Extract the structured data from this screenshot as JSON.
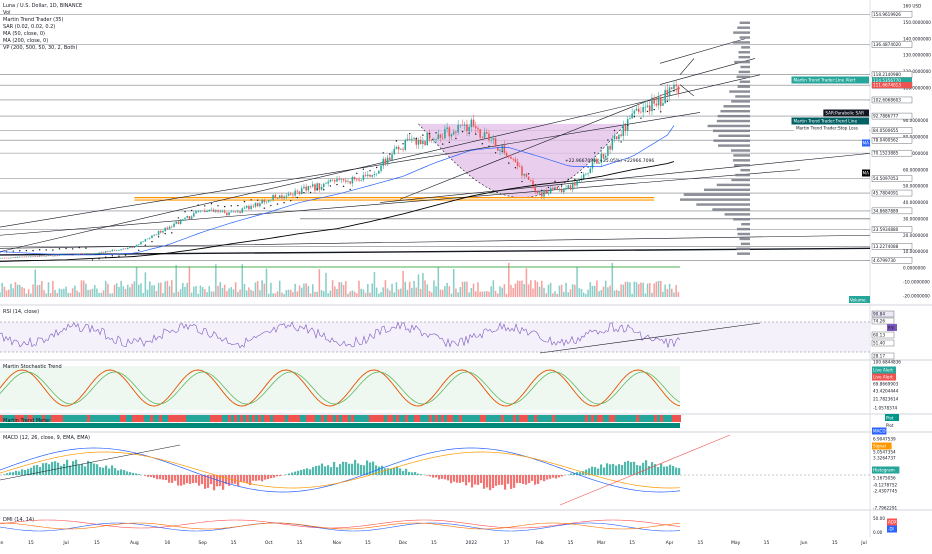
{
  "header": {
    "title": "Luna / U.S. Dollar, 1D, BINANCE",
    "indicators": [
      "Vol",
      "Martin Trend Trader (35)",
      "SAR (0.02, 0.02, 0.2)",
      "MA (50, close, 0)",
      "MA (200, close, 0)",
      "VP (200, 500, 50, 30, 2, Both)"
    ]
  },
  "panes": {
    "rsi": "RSI (14, close)",
    "stoch": "Martin Stochastic Trend",
    "meter": "Martin Trend Meter",
    "macd": "MACD (12, 26, close, 9, EMA, EMA)",
    "dmi": "DMI (14, 14)"
  },
  "colors": {
    "bull": "#26a69a",
    "bear": "#ef5350",
    "cup_fill": "#e1bee7",
    "ma50": "#2962ff",
    "ma200": "#000000",
    "sar": "#131722",
    "profile": "#787b86",
    "support": "#ff9800",
    "rsi": "#7e57c2",
    "stoch_k": "#e65100",
    "stoch_d": "#4caf50",
    "macd": "#2962ff",
    "signal": "#ff9800",
    "adx": "#ff5252",
    "diplus": "#2962ff",
    "diminus": "#ff6d00"
  },
  "price_axis": {
    "ticks": [
      "160 USD",
      "150.0000000",
      "140.0000000",
      "130.0000000",
      "120.0000000",
      "110.0000000",
      "90.0000000",
      "80.0000000",
      "70.0000000",
      "60.0000000",
      "50.0000000",
      "40.0000000",
      "30.0000000",
      "20.0000000",
      "10.0000000",
      "0.0000000",
      "-10.0000000",
      "-20.0000000"
    ],
    "labels": [
      {
        "text": "154.9619926",
        "color": "#131722"
      },
      {
        "text": "136.4874020",
        "color": "#131722"
      },
      {
        "text": "118.2140980",
        "color": "#131722"
      },
      {
        "text": "114.5356770",
        "color": "#26a69a"
      },
      {
        "text": "111.6674013",
        "color": "#ef5350"
      },
      {
        "text": "102.6068603",
        "color": "#131722"
      },
      {
        "text": "92.7886777",
        "color": "#131722"
      },
      {
        "text": "84.0500655",
        "color": "#131722"
      },
      {
        "text": "78.0400562",
        "color": "#131722"
      },
      {
        "text": "70.1523885",
        "color": "#131722"
      },
      {
        "text": "54.5097053",
        "color": "#131722"
      },
      {
        "text": "45.7804091",
        "color": "#131722"
      },
      {
        "text": "34.8687889",
        "color": "#131722"
      },
      {
        "text": "23.5934880",
        "color": "#131722"
      },
      {
        "text": "13.2274088",
        "color": "#131722"
      },
      {
        "text": "4.6799730",
        "color": "#131722"
      }
    ],
    "tags": [
      {
        "text": "Martin Trend Trader:Line Alert",
        "color": "#26a69a"
      },
      {
        "text": "SAR:Parabolic SAR",
        "color": "#131722"
      },
      {
        "text": "Martin Trend Trader:Trend Line",
        "color": "#006064"
      },
      {
        "text": "Martin Trend Trader:Stop Loss",
        "color": "#ffffff"
      },
      {
        "text": "MA",
        "color": "#2962ff"
      },
      {
        "text": "MA",
        "color": "#131722"
      },
      {
        "text": "Volume",
        "color": "#26a69a"
      }
    ]
  },
  "rsi_axis": [
    "90.84",
    "74.26",
    "60.13",
    "51.40",
    "28.17"
  ],
  "stoch_axis": [
    "100.6844836",
    "69.8669903",
    "43.4204444",
    "21.7823614",
    "-1.0578374"
  ],
  "stoch_tags": [
    "Live Alert",
    "Live Alert"
  ],
  "meter_tags": [
    "Plot",
    "Plot"
  ],
  "macd_axis": [
    "6.9047539",
    "5.0547354",
    "3.3264737",
    "5.1675056",
    "-0.1278752",
    "-2.4307745",
    "-7.7962291"
  ],
  "macd_tags": [
    "MACD",
    "Signal",
    "Histogram"
  ],
  "dmi_axis": [
    "50.00",
    "0.00"
  ],
  "dmi_tags": [
    "ADX",
    "-DI"
  ],
  "annotation": "+22.9667096 (+25.05%) +22966.7096",
  "x_axis": [
    "Jun",
    "15",
    "Jul",
    "15",
    "Aug",
    "16",
    "Sep",
    "15",
    "Oct",
    "15",
    "Nov",
    "15",
    "Dec",
    "15",
    "2022",
    "17",
    "Feb",
    "15",
    "Mar",
    "15",
    "Apr",
    "15",
    "May",
    "15",
    "Jun",
    "15",
    "Jul"
  ],
  "chart_data": {
    "type": "candlestick",
    "title": "Luna / U.S. Dollar, 1D, BINANCE",
    "x_range": [
      "2021-06-01",
      "2022-07-01"
    ],
    "ylim": [
      -20,
      160
    ],
    "series": [
      {
        "name": "Luna / U.S. Dollar",
        "type": "candlestick",
        "x": [
          "2021-06-01",
          "2021-06-15",
          "2021-07-01",
          "2021-07-15",
          "2021-08-01",
          "2021-08-16",
          "2021-09-01",
          "2021-09-15",
          "2021-10-01",
          "2021-10-15",
          "2021-11-01",
          "2021-11-15",
          "2021-12-01",
          "2021-12-15",
          "2022-01-01",
          "2022-01-17",
          "2022-02-01",
          "2022-02-15",
          "2022-03-01",
          "2022-03-15",
          "2022-04-01",
          "2022-04-05"
        ],
        "close": [
          6,
          7,
          8,
          9,
          13,
          25,
          35,
          33,
          42,
          47,
          53,
          55,
          75,
          80,
          87,
          70,
          45,
          50,
          68,
          92,
          107,
          112
        ]
      },
      {
        "name": "MA (50, close, 0)",
        "values": [
          10,
          9,
          8,
          8,
          9,
          14,
          22,
          28,
          34,
          40,
          45,
          50,
          56,
          64,
          72,
          74,
          68,
          62,
          62,
          68,
          82,
          92
        ]
      },
      {
        "name": "MA (200, close, 0)",
        "values": [
          4,
          4.5,
          5,
          6,
          7,
          9,
          12,
          15,
          18,
          21,
          24,
          28,
          33,
          38,
          44,
          48,
          51,
          53,
          56,
          60,
          64,
          66
        ]
      }
    ],
    "horizontal_levels": [
      154.96,
      136.49,
      118.21,
      111.67,
      102.61,
      92.79,
      84.05,
      78.04,
      70.15,
      54.51,
      45.78,
      34.87,
      23.59,
      13.23,
      4.68
    ],
    "rsi": {
      "levels": [
        28.17,
        51.4,
        60.13,
        74.26,
        90.84
      ],
      "last": 74.26
    },
    "stochastic": {
      "levels": [
        100.68,
        69.87,
        43.42,
        21.78,
        -1.06
      ]
    },
    "macd": {
      "levels": [
        6.9,
        5.05,
        3.33,
        5.17,
        -0.13,
        -2.43,
        -7.8
      ]
    },
    "dmi": {
      "levels": [
        50,
        0
      ]
    },
    "volume_levels": [
      0,
      -10,
      -20
    ]
  }
}
